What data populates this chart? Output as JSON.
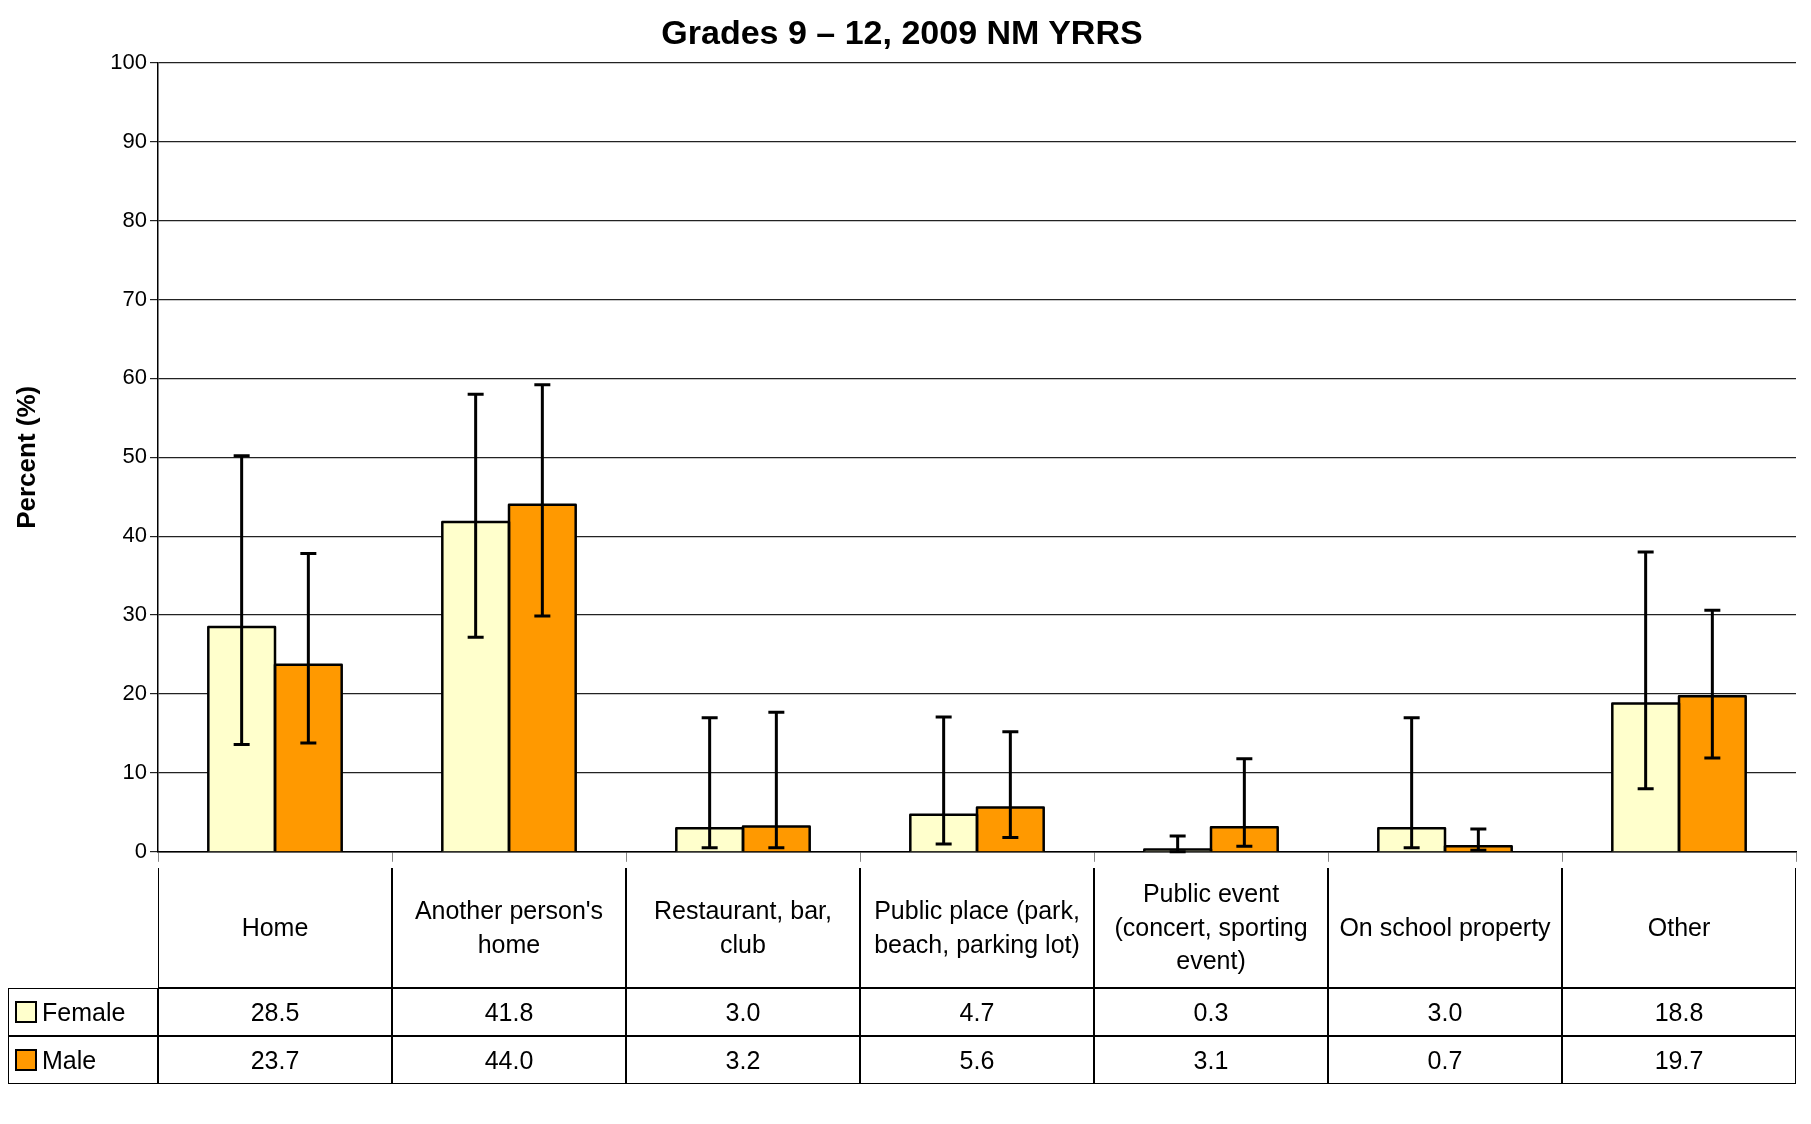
{
  "chart_data": {
    "type": "bar",
    "title": "Grades 9 – 12, 2009 NM YRRS",
    "ylabel": "Percent (%)",
    "categories": [
      "Home",
      "Another person's home",
      "Restaurant, bar, club",
      "Public place (park, beach, parking lot)",
      "Public event (concert, sporting event)",
      "On school property",
      "Other"
    ],
    "series": [
      {
        "name": "Female",
        "color": "#ffffcc",
        "values": [
          28.5,
          41.8,
          3.0,
          4.7,
          0.3,
          3.0,
          18.8
        ],
        "value_labels": [
          "28.5",
          "41.8",
          "3.0",
          "4.7",
          "0.3",
          "3.0",
          "18.8"
        ],
        "errors": [
          [
            13.6,
            50.2
          ],
          [
            27.2,
            58.0
          ],
          [
            0.5,
            17.0
          ],
          [
            1.0,
            17.1
          ],
          [
            0.0,
            2.0
          ],
          [
            0.5,
            17.0
          ],
          [
            8.0,
            38.0
          ]
        ]
      },
      {
        "name": "Male",
        "color": "#ff9900",
        "values": [
          23.7,
          44.0,
          3.2,
          5.6,
          3.1,
          0.7,
          19.7
        ],
        "value_labels": [
          "23.7",
          "44.0",
          "3.2",
          "5.6",
          "3.1",
          "0.7",
          "19.7"
        ],
        "errors": [
          [
            13.8,
            37.8
          ],
          [
            29.9,
            59.2
          ],
          [
            0.5,
            17.7
          ],
          [
            1.8,
            15.2
          ],
          [
            0.7,
            11.8
          ],
          [
            0.2,
            2.9
          ],
          [
            11.9,
            30.6
          ]
        ]
      }
    ],
    "ylim": [
      0,
      100
    ],
    "yticks": [
      0,
      10,
      20,
      30,
      40,
      50,
      60,
      70,
      80,
      90,
      100
    ],
    "grid": "y",
    "legend": "bottom left"
  }
}
